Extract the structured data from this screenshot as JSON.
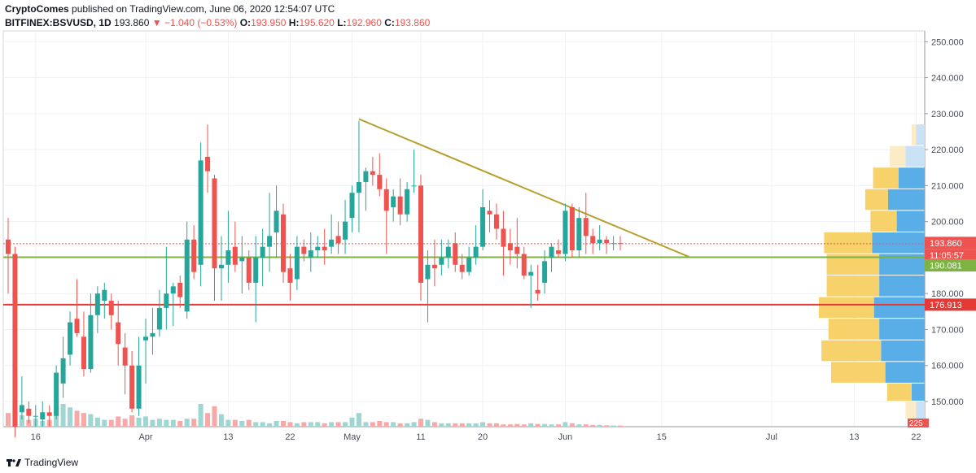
{
  "header": {
    "author": "CryptoComes",
    "published": " published on TradingView.com, June 06, 2020 12:54:07 UTC",
    "symbol": "BITFINEX:BSVUSD, 1D",
    "last": "193.860",
    "change": "▼ −1.040 (−0.53%)",
    "o_label": "O:",
    "o_value": "193.950",
    "h_label": "H:",
    "h_value": "195.620",
    "l_label": "L:",
    "l_value": "192.960",
    "c_label": "C:",
    "c_value": "193.860"
  },
  "footer": {
    "brand": "TradingView"
  },
  "colors": {
    "up": "#26a69a",
    "down": "#ef5350",
    "vol_up": "#9fd6d1",
    "vol_down": "#f7a9a7",
    "trendline": "#b8a030",
    "support_green": "#7cb342",
    "support_red": "#e53935",
    "vp_up": "#5aaee8",
    "vp_down": "#f7d26b",
    "vp_up_faint": "#c9e2f6",
    "vp_down_faint": "#fbecc6"
  },
  "chart_data": {
    "type": "candlestick",
    "symbol": "BSVUSD",
    "ylim": [
      143,
      253
    ],
    "y_ticks": [
      "250.000",
      "240.000",
      "230.000",
      "220.000",
      "210.000",
      "200.000",
      "190.000",
      "180.000",
      "170.000",
      "160.000",
      "150.000"
    ],
    "x_tick_labels": [
      {
        "day": 4,
        "label": "16"
      },
      {
        "day": 20,
        "label": "Apr"
      },
      {
        "day": 32,
        "label": "13"
      },
      {
        "day": 41,
        "label": "22"
      },
      {
        "day": 50,
        "label": "May"
      },
      {
        "day": 60,
        "label": "11"
      },
      {
        "day": 69,
        "label": "20"
      },
      {
        "day": 81,
        "label": "Jun"
      },
      {
        "day": 95,
        "label": "15"
      },
      {
        "day": 111,
        "label": "Jul"
      },
      {
        "day": 123,
        "label": "13"
      },
      {
        "day": 132,
        "label": "22"
      }
    ],
    "candles": [
      {
        "o": 195,
        "h": 201,
        "l": 180,
        "c": 191
      },
      {
        "o": 191,
        "h": 193,
        "l": 140,
        "c": 143
      },
      {
        "o": 147,
        "h": 157,
        "l": 145,
        "c": 149
      },
      {
        "o": 148,
        "h": 150,
        "l": 144,
        "c": 146
      },
      {
        "o": 146,
        "h": 149,
        "l": 143,
        "c": 146
      },
      {
        "o": 145,
        "h": 150,
        "l": 143,
        "c": 147
      },
      {
        "o": 147,
        "h": 149,
        "l": 143,
        "c": 146
      },
      {
        "o": 146,
        "h": 160,
        "l": 145,
        "c": 158
      },
      {
        "o": 155,
        "h": 168,
        "l": 151,
        "c": 162
      },
      {
        "o": 163,
        "h": 175,
        "l": 160,
        "c": 172
      },
      {
        "o": 173,
        "h": 184,
        "l": 168,
        "c": 169
      },
      {
        "o": 168,
        "h": 175,
        "l": 157,
        "c": 159
      },
      {
        "o": 159,
        "h": 180,
        "l": 158,
        "c": 174
      },
      {
        "o": 174,
        "h": 182,
        "l": 169,
        "c": 180
      },
      {
        "o": 178,
        "h": 183,
        "l": 173,
        "c": 181
      },
      {
        "o": 178,
        "h": 180,
        "l": 170,
        "c": 174
      },
      {
        "o": 172,
        "h": 178,
        "l": 160,
        "c": 166
      },
      {
        "o": 165,
        "h": 169,
        "l": 152,
        "c": 160
      },
      {
        "o": 160,
        "h": 164,
        "l": 147,
        "c": 148
      },
      {
        "o": 148,
        "h": 168,
        "l": 146,
        "c": 160
      },
      {
        "o": 167,
        "h": 173,
        "l": 155,
        "c": 168
      },
      {
        "o": 168,
        "h": 176,
        "l": 163,
        "c": 169
      },
      {
        "o": 170,
        "h": 181,
        "l": 168,
        "c": 176
      },
      {
        "o": 176,
        "h": 193,
        "l": 170,
        "c": 180
      },
      {
        "o": 180,
        "h": 183,
        "l": 171,
        "c": 182
      },
      {
        "o": 183,
        "h": 185,
        "l": 176,
        "c": 179
      },
      {
        "o": 175,
        "h": 200,
        "l": 173,
        "c": 195
      },
      {
        "o": 195,
        "h": 199,
        "l": 184,
        "c": 186
      },
      {
        "o": 188,
        "h": 222,
        "l": 182,
        "c": 217
      },
      {
        "o": 218,
        "h": 227,
        "l": 208,
        "c": 214
      },
      {
        "o": 212,
        "h": 213,
        "l": 178,
        "c": 187
      },
      {
        "o": 187,
        "h": 196,
        "l": 178,
        "c": 188
      },
      {
        "o": 188,
        "h": 203,
        "l": 183,
        "c": 192
      },
      {
        "o": 193,
        "h": 200,
        "l": 186,
        "c": 188
      },
      {
        "o": 189,
        "h": 196,
        "l": 180,
        "c": 190
      },
      {
        "o": 190,
        "h": 192,
        "l": 181,
        "c": 183
      },
      {
        "o": 183,
        "h": 196,
        "l": 172,
        "c": 190
      },
      {
        "o": 190,
        "h": 198,
        "l": 182,
        "c": 193
      },
      {
        "o": 193,
        "h": 208,
        "l": 186,
        "c": 196
      },
      {
        "o": 197,
        "h": 210,
        "l": 190,
        "c": 203
      },
      {
        "o": 202,
        "h": 205,
        "l": 183,
        "c": 186
      },
      {
        "o": 187,
        "h": 191,
        "l": 178,
        "c": 183
      },
      {
        "o": 184,
        "h": 196,
        "l": 181,
        "c": 193
      },
      {
        "o": 193,
        "h": 195,
        "l": 189,
        "c": 191
      },
      {
        "o": 190,
        "h": 197,
        "l": 186,
        "c": 192
      },
      {
        "o": 192,
        "h": 196,
        "l": 190,
        "c": 193
      },
      {
        "o": 193,
        "h": 198,
        "l": 188,
        "c": 192
      },
      {
        "o": 193,
        "h": 202,
        "l": 191,
        "c": 195
      },
      {
        "o": 196,
        "h": 200,
        "l": 191,
        "c": 194
      },
      {
        "o": 195,
        "h": 206,
        "l": 191,
        "c": 200
      },
      {
        "o": 201,
        "h": 210,
        "l": 197,
        "c": 208
      },
      {
        "o": 208,
        "h": 228,
        "l": 197,
        "c": 211
      },
      {
        "o": 211,
        "h": 215,
        "l": 203,
        "c": 214
      },
      {
        "o": 214,
        "h": 218,
        "l": 210,
        "c": 213
      },
      {
        "o": 213,
        "h": 219,
        "l": 207,
        "c": 209
      },
      {
        "o": 209,
        "h": 212,
        "l": 191,
        "c": 203
      },
      {
        "o": 204,
        "h": 209,
        "l": 200,
        "c": 207
      },
      {
        "o": 207,
        "h": 212,
        "l": 199,
        "c": 202
      },
      {
        "o": 202,
        "h": 211,
        "l": 200,
        "c": 209
      },
      {
        "o": 210,
        "h": 220,
        "l": 208,
        "c": 210
      },
      {
        "o": 210,
        "h": 213,
        "l": 178,
        "c": 183
      },
      {
        "o": 184,
        "h": 192,
        "l": 172,
        "c": 188
      },
      {
        "o": 188,
        "h": 195,
        "l": 182,
        "c": 187
      },
      {
        "o": 188,
        "h": 195,
        "l": 185,
        "c": 190
      },
      {
        "o": 190,
        "h": 195,
        "l": 187,
        "c": 193
      },
      {
        "o": 194,
        "h": 197,
        "l": 186,
        "c": 188
      },
      {
        "o": 188,
        "h": 191,
        "l": 184,
        "c": 186
      },
      {
        "o": 186,
        "h": 193,
        "l": 185,
        "c": 190
      },
      {
        "o": 190,
        "h": 199,
        "l": 188,
        "c": 193
      },
      {
        "o": 193,
        "h": 209,
        "l": 192,
        "c": 204
      },
      {
        "o": 203,
        "h": 206,
        "l": 197,
        "c": 202
      },
      {
        "o": 202,
        "h": 205,
        "l": 195,
        "c": 198
      },
      {
        "o": 198,
        "h": 203,
        "l": 185,
        "c": 193
      },
      {
        "o": 194,
        "h": 198,
        "l": 188,
        "c": 192
      },
      {
        "o": 193,
        "h": 201,
        "l": 187,
        "c": 191
      },
      {
        "o": 191,
        "h": 193,
        "l": 184,
        "c": 185
      },
      {
        "o": 185,
        "h": 188,
        "l": 176,
        "c": 186
      },
      {
        "o": 181,
        "h": 188,
        "l": 178,
        "c": 180
      },
      {
        "o": 183,
        "h": 192,
        "l": 180,
        "c": 189
      },
      {
        "o": 190,
        "h": 194,
        "l": 186,
        "c": 193
      },
      {
        "o": 192,
        "h": 195,
        "l": 190,
        "c": 191
      },
      {
        "o": 191,
        "h": 205,
        "l": 189,
        "c": 203
      },
      {
        "o": 204,
        "h": 205,
        "l": 190,
        "c": 192
      },
      {
        "o": 192,
        "h": 204,
        "l": 190,
        "c": 201
      },
      {
        "o": 201,
        "h": 208,
        "l": 191,
        "c": 196
      },
      {
        "o": 196,
        "h": 198,
        "l": 191,
        "c": 194
      },
      {
        "o": 194,
        "h": 199,
        "l": 192,
        "c": 195
      },
      {
        "o": 195,
        "h": 196,
        "l": 191,
        "c": 194
      },
      {
        "o": 194,
        "h": 196,
        "l": 192,
        "c": 194
      },
      {
        "o": 194,
        "h": 196,
        "l": 192,
        "c": 193.86
      }
    ],
    "volume_rel": [
      0.6,
      0.9,
      0.5,
      0.3,
      0.35,
      0.25,
      0.3,
      0.9,
      1.0,
      0.85,
      0.7,
      0.6,
      0.55,
      0.4,
      0.3,
      0.3,
      0.45,
      0.35,
      0.5,
      0.4,
      0.45,
      0.3,
      0.35,
      0.3,
      0.3,
      0.25,
      0.35,
      0.35,
      1.0,
      0.6,
      0.9,
      0.55,
      0.3,
      0.3,
      0.25,
      0.3,
      0.2,
      0.2,
      0.15,
      0.25,
      0.25,
      0.2,
      0.15,
      0.2,
      0.2,
      0.2,
      0.15,
      0.2,
      0.2,
      0.2,
      0.4,
      0.6,
      0.2,
      0.2,
      0.25,
      0.2,
      0.2,
      0.15,
      0.15,
      0.2,
      0.35,
      0.3,
      0.2,
      0.15,
      0.15,
      0.15,
      0.15,
      0.15,
      0.15,
      0.2,
      0.15,
      0.15,
      0.1,
      0.1,
      0.12,
      0.1,
      0.15,
      0.12,
      0.12,
      0.1,
      0.1,
      0.2,
      0.15,
      0.1,
      0.1,
      0.08,
      0.08,
      0.06,
      0.05,
      0.05
    ],
    "trendline": {
      "start": {
        "day": 51,
        "price": 228.5
      },
      "end": {
        "day": 99,
        "price": 190.2
      }
    },
    "support_lines": [
      {
        "price": 190.081,
        "label": "190.081",
        "color": "#7cb342"
      },
      {
        "price": 176.913,
        "label": "176.913",
        "color": "#e53935"
      }
    ],
    "last_price_label": {
      "price": 193.86,
      "label": "193.860",
      "countdown": "11:05:57"
    },
    "volume_profile": [
      {
        "from": 145,
        "to": 150,
        "up": 0.1,
        "down": 0.12,
        "faint": true
      },
      {
        "from": 150,
        "to": 155,
        "up": 0.15,
        "down": 0.28,
        "faint": false
      },
      {
        "from": 155,
        "to": 161,
        "up": 0.45,
        "down": 0.62,
        "faint": false
      },
      {
        "from": 161,
        "to": 167,
        "up": 0.5,
        "down": 0.68,
        "faint": false
      },
      {
        "from": 167,
        "to": 173,
        "up": 0.52,
        "down": 0.58,
        "faint": false
      },
      {
        "from": 173,
        "to": 179,
        "up": 0.58,
        "down": 0.63,
        "faint": false
      },
      {
        "from": 179,
        "to": 185,
        "up": 0.52,
        "down": 0.6,
        "faint": false
      },
      {
        "from": 185,
        "to": 191,
        "up": 0.52,
        "down": 0.6,
        "faint": false
      },
      {
        "from": 191,
        "to": 197,
        "up": 0.6,
        "down": 0.55,
        "faint": false
      },
      {
        "from": 197,
        "to": 203,
        "up": 0.32,
        "down": 0.3,
        "faint": false
      },
      {
        "from": 203,
        "to": 209,
        "up": 0.42,
        "down": 0.26,
        "faint": false
      },
      {
        "from": 209,
        "to": 215,
        "up": 0.3,
        "down": 0.29,
        "faint": false
      },
      {
        "from": 215,
        "to": 221,
        "up": 0.22,
        "down": 0.18,
        "faint": true
      },
      {
        "from": 221,
        "to": 227,
        "up": 0.1,
        "down": 0.05,
        "faint": true
      }
    ],
    "bottom_axis_label": "225"
  }
}
